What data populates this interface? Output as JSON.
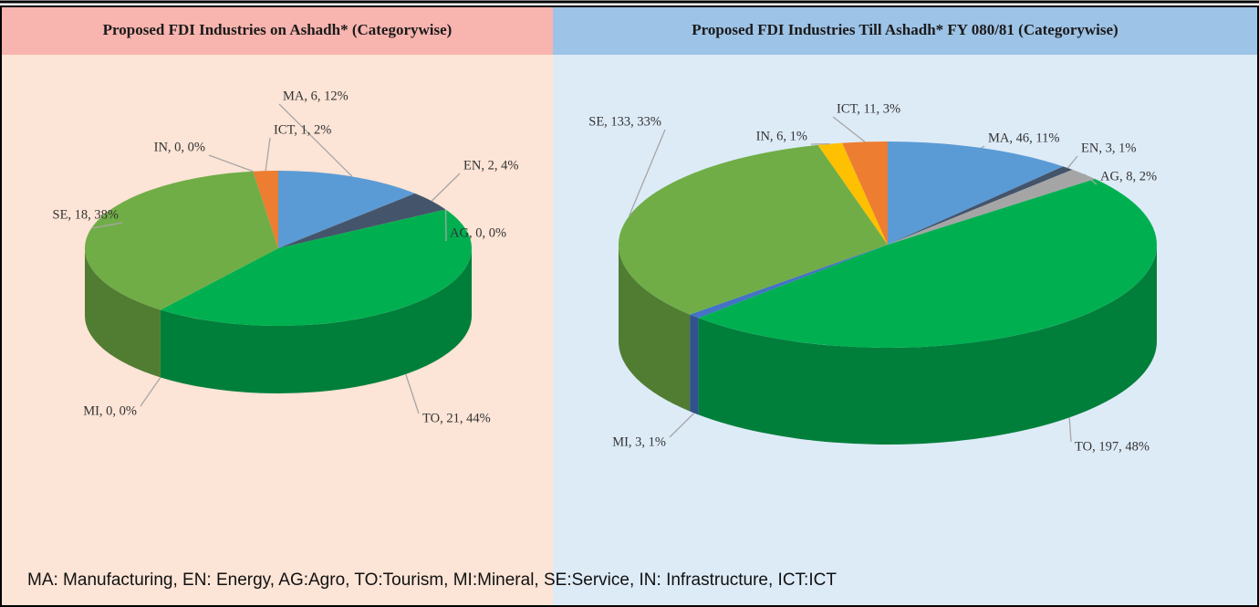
{
  "footnote": "MA: Manufacturing, EN: Energy,  AG:Agro,  TO:Tourism, MI:Mineral,  SE:Service,  IN: Infrastructure,  ICT:ICT",
  "chart_data": [
    {
      "type": "pie",
      "title": "Proposed FDI Industries on Ashadh* (Categorywise)",
      "values": [
        6,
        2,
        0,
        21,
        0,
        18,
        0,
        1
      ],
      "value_labels": [
        "MA, 6, 12%",
        "EN, 2, 4%",
        "AG, 0, 0%",
        "TO, 21, 44%",
        "MI, 0, 0%",
        "SE, 18, 38%",
        "IN, 0, 0%",
        "ICT, 1, 2%"
      ],
      "colors": [
        "#5b9bd5",
        "#44546a",
        "#a5a5a5",
        "#00b050",
        "#4472c4",
        "#70ad47",
        "#ffc000",
        "#ed7d31"
      ]
    },
    {
      "type": "pie",
      "title": "Proposed FDI Industries Till Ashadh* FY 080/81 (Categorywise)",
      "values": [
        46,
        3,
        8,
        197,
        3,
        133,
        6,
        11
      ],
      "value_labels": [
        "MA, 46, 11%",
        "EN, 3, 1%",
        "AG, 8, 2%",
        "TO, 197, 48%",
        "MI, 3, 1%",
        "SE, 133, 33%",
        "IN, 6, 1%",
        "ICT, 11, 3%"
      ],
      "colors": [
        "#5b9bd5",
        "#44546a",
        "#a5a5a5",
        "#00b050",
        "#4472c4",
        "#70ad47",
        "#ffc000",
        "#ed7d31"
      ]
    }
  ]
}
